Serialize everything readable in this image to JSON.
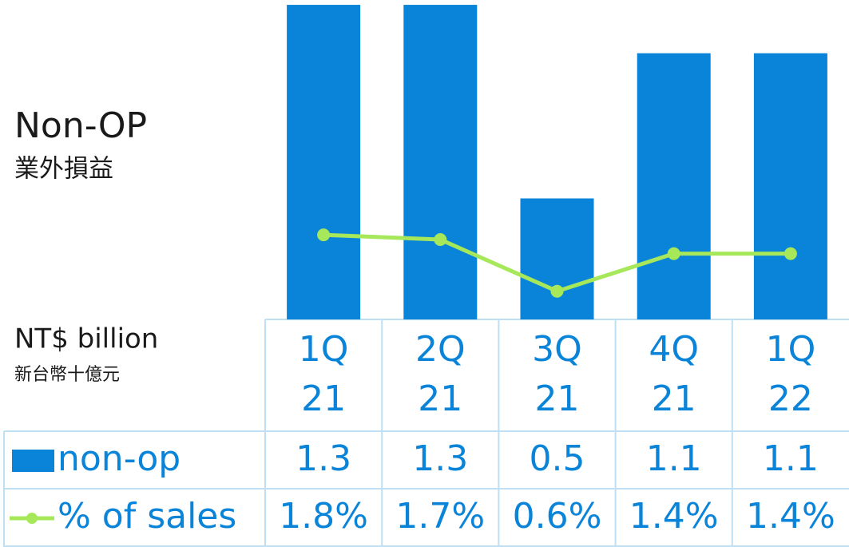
{
  "chart_data": {
    "type": "bar",
    "title": "Non-OP",
    "subtitle": "業外損益",
    "unit_label": "NT$ billion",
    "unit_subtitle": "新台幣十億元",
    "categories": [
      [
        "1Q",
        "21"
      ],
      [
        "2Q",
        "21"
      ],
      [
        "3Q",
        "21"
      ],
      [
        "4Q",
        "21"
      ],
      [
        "1Q",
        "22"
      ]
    ],
    "series": [
      {
        "name": "non-op",
        "color": "#0a84d8",
        "values": [
          1.3,
          1.3,
          0.5,
          1.1,
          1.1
        ]
      },
      {
        "name": "% of sales",
        "type": "line",
        "axis": "y2",
        "color": "#a6e85a",
        "values": [
          1.8,
          1.7,
          0.6,
          1.4,
          1.4
        ],
        "value_labels": [
          "1.8%",
          "1.7%",
          "0.6%",
          "1.4%",
          "1.4%"
        ]
      }
    ],
    "ylim": [
      0,
      1.32
    ],
    "y2lim": [
      0,
      6.8
    ]
  }
}
